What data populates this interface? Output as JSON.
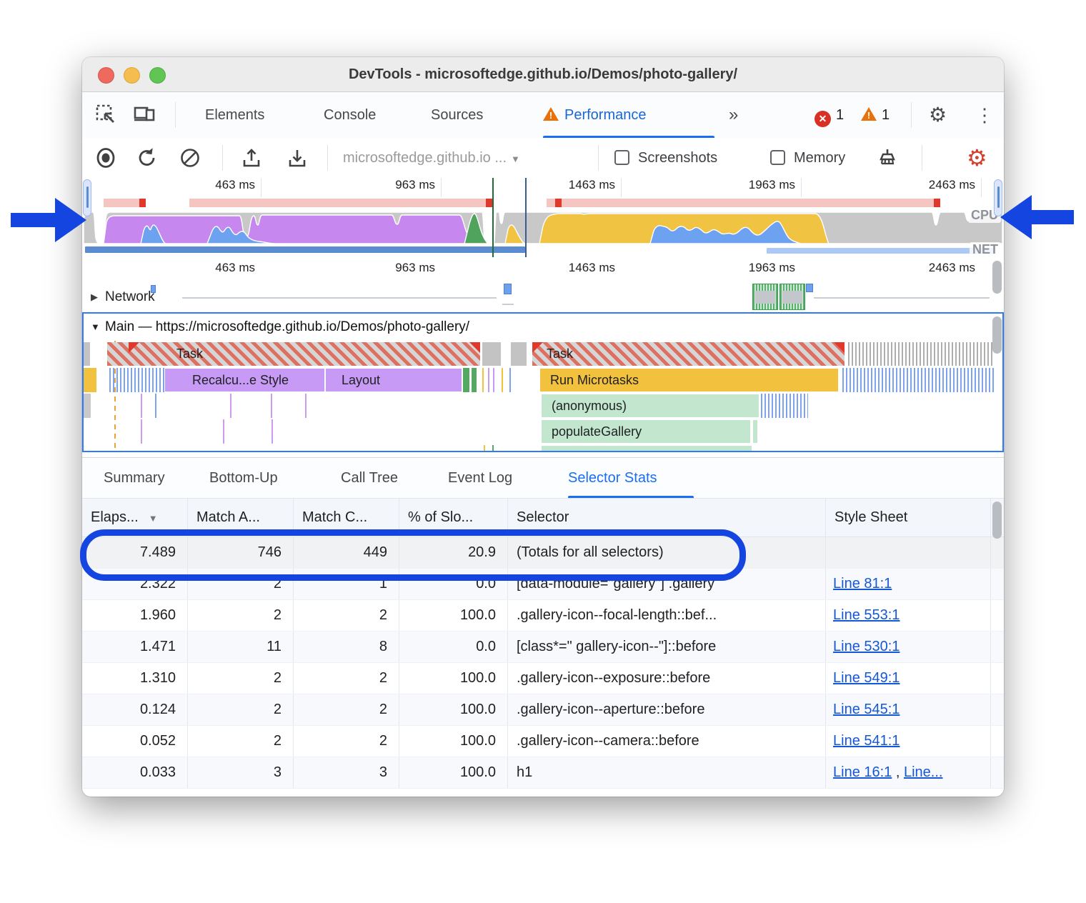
{
  "window": {
    "title": "DevTools - microsoftedge.github.io/Demos/photo-gallery/"
  },
  "tabs": {
    "items": [
      "Elements",
      "Console",
      "Sources",
      "Performance"
    ],
    "active": "Performance",
    "more_label": "»",
    "error_count": "1",
    "warning_count": "1"
  },
  "toolbar": {
    "page_dropdown": "microsoftedge.github.io ...",
    "screenshots_label": "Screenshots",
    "memory_label": "Memory"
  },
  "timeline": {
    "ruler_labels": [
      "463 ms",
      "963 ms",
      "1463 ms",
      "1963 ms",
      "2463 ms"
    ],
    "cpu_label": "CPU",
    "net_label": "NET"
  },
  "network_track": {
    "label": "Network"
  },
  "main_track": {
    "label": "Main — https://microsoftedge.github.io/Demos/photo-gallery/",
    "frames": {
      "task1": "Task",
      "task2": "Task",
      "recalc_style": "Recalcu...e Style",
      "layout": "Layout",
      "run_microtasks": "Run Microtasks",
      "anonymous": "(anonymous)",
      "populate_gallery": "populateGallery"
    }
  },
  "bottom_tabs": {
    "items": [
      "Summary",
      "Bottom-Up",
      "Call Tree",
      "Event Log",
      "Selector Stats"
    ],
    "active": "Selector Stats"
  },
  "table": {
    "headers": [
      "Elaps...",
      "Match A...",
      "Match C...",
      "% of Slo...",
      "Selector",
      "Style Sheet"
    ],
    "link_separator": " , ",
    "rows": [
      {
        "elapsed": "7.489",
        "match_attempts": "746",
        "match_count": "449",
        "pct_slow": "20.9",
        "selector": "(Totals for all selectors)",
        "links": [],
        "highlight": true
      },
      {
        "elapsed": "2.322",
        "match_attempts": "2",
        "match_count": "1",
        "pct_slow": "0.0",
        "selector": "[data-module=\"gallery\"] .gallery",
        "links": [
          "Line 81:1"
        ]
      },
      {
        "elapsed": "1.960",
        "match_attempts": "2",
        "match_count": "2",
        "pct_slow": "100.0",
        "selector": ".gallery-icon--focal-length::bef...",
        "links": [
          "Line 553:1"
        ]
      },
      {
        "elapsed": "1.471",
        "match_attempts": "11",
        "match_count": "8",
        "pct_slow": "0.0",
        "selector": "[class*=\" gallery-icon--\"]::before",
        "links": [
          "Line 530:1"
        ]
      },
      {
        "elapsed": "1.310",
        "match_attempts": "2",
        "match_count": "2",
        "pct_slow": "100.0",
        "selector": ".gallery-icon--exposure::before",
        "links": [
          "Line 549:1"
        ]
      },
      {
        "elapsed": "0.124",
        "match_attempts": "2",
        "match_count": "2",
        "pct_slow": "100.0",
        "selector": ".gallery-icon--aperture::before",
        "links": [
          "Line 545:1"
        ]
      },
      {
        "elapsed": "0.052",
        "match_attempts": "2",
        "match_count": "2",
        "pct_slow": "100.0",
        "selector": ".gallery-icon--camera::before",
        "links": [
          "Line 541:1"
        ]
      },
      {
        "elapsed": "0.033",
        "match_attempts": "3",
        "match_count": "3",
        "pct_slow": "100.0",
        "selector": "h1",
        "links": [
          "Line 16:1",
          "Line..."
        ]
      }
    ]
  },
  "icons": {
    "gear": "⚙",
    "kebab": "⋮",
    "close": "✕",
    "warning_mark": "!",
    "sort_desc": "▼",
    "caret_down": "▼",
    "tri_collapsed": "▶",
    "tri_expanded": "▼"
  },
  "colors": {
    "accent_blue": "#1a6ef3",
    "annotation_blue": "#1545e0",
    "error_red": "#d93025",
    "warning_orange": "#e8710a",
    "cpu_gray": "#c8c8c8",
    "cpu_purple": "#c687ef",
    "cpu_blue": "#6da2f0",
    "cpu_green": "#4fa35c",
    "cpu_yellow": "#f0c343",
    "net_dark": "#5b8bd0",
    "net_light": "#abc8f7",
    "long_task_pink": "#f5c6c1",
    "long_task_red": "#e0392b",
    "js_frame_green": "#c3e6cf",
    "link_blue": "#1558d6"
  }
}
